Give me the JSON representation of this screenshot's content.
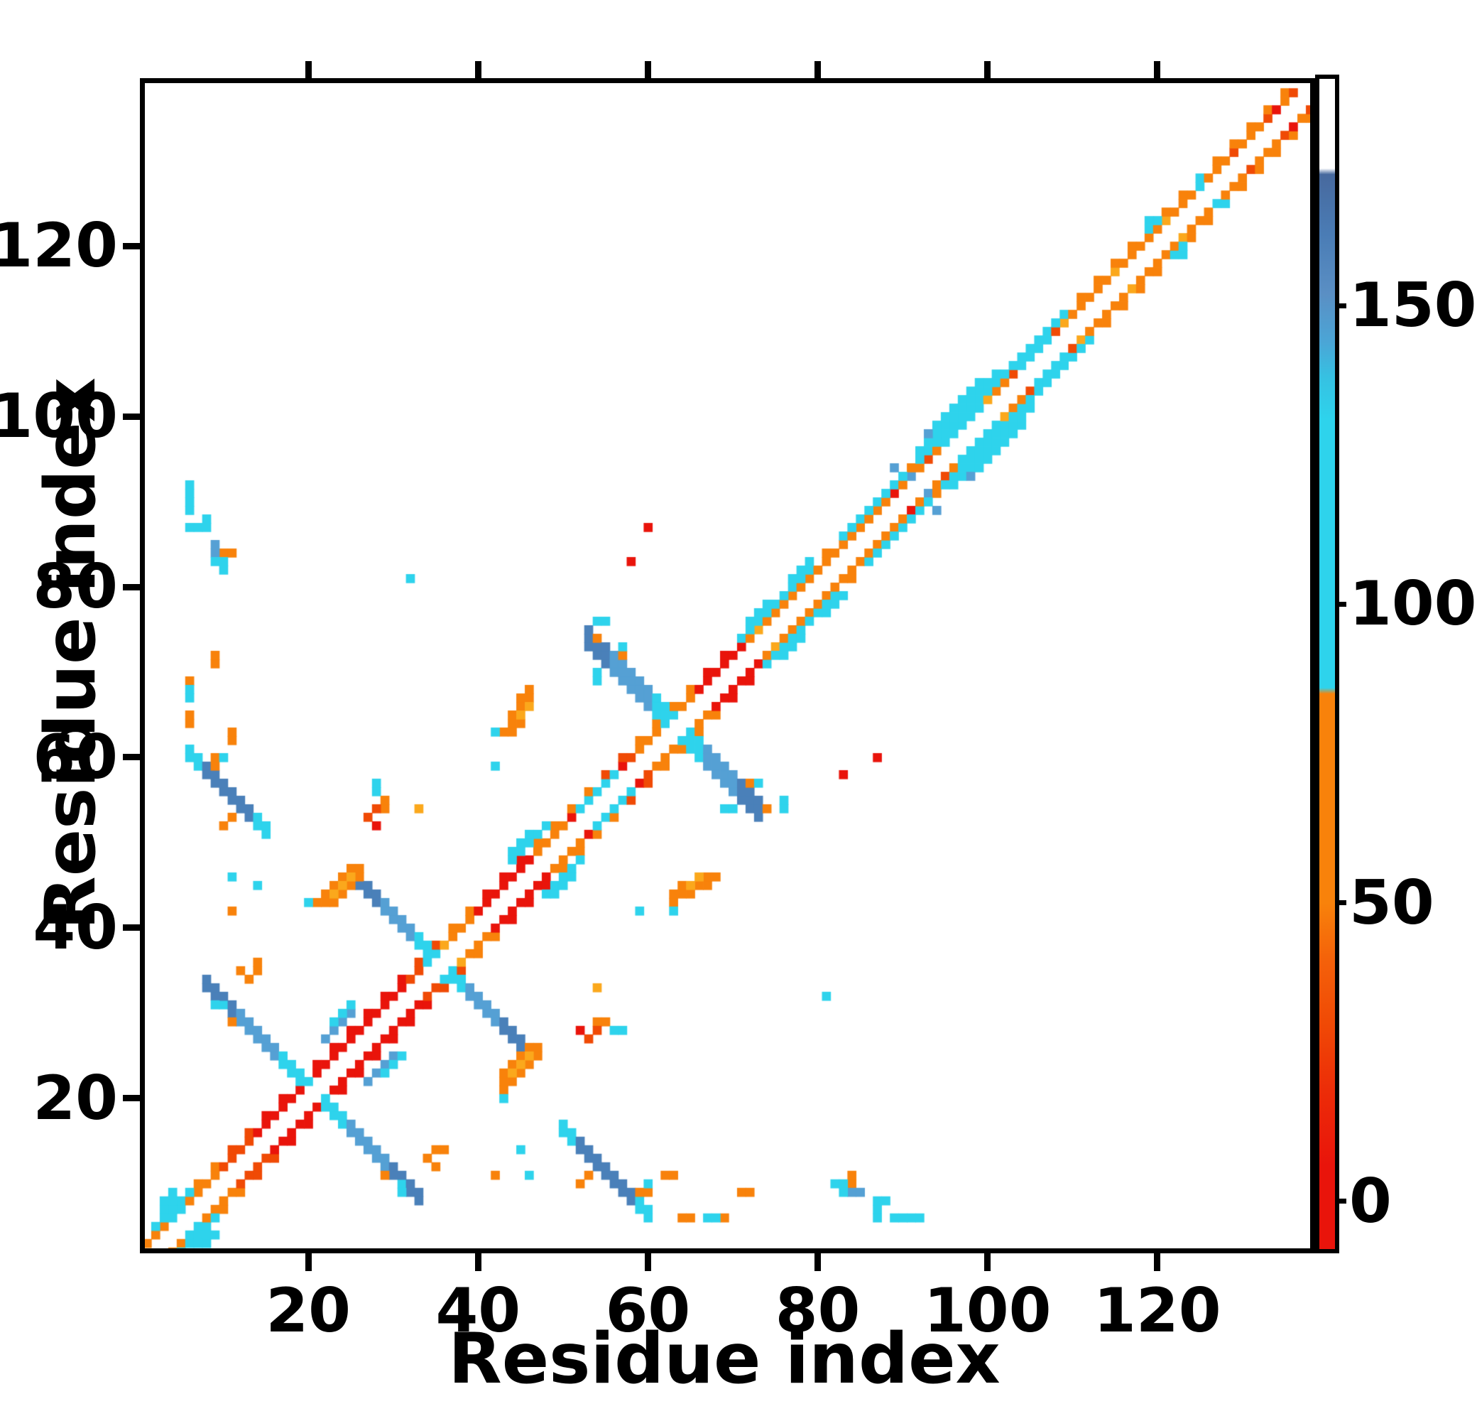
{
  "chart_data": {
    "type": "heatmap",
    "title": "",
    "xlabel": "Residue index",
    "ylabel": "Residue index",
    "x_ticks": [
      20,
      40,
      60,
      80,
      100,
      120
    ],
    "y_ticks": [
      20,
      40,
      60,
      80,
      100,
      120
    ],
    "x_range": [
      0.75,
      138.0
    ],
    "y_range": [
      2.4,
      139.1
    ],
    "n_residues": 138,
    "grid": false,
    "palette": {
      "red": "#e9140b",
      "redorange": "#f04a05",
      "orange": "#f8820b",
      "amber": "#fba81c",
      "cyan": "#2ed3ec",
      "mblue": "#55a0d4",
      "sblue": "#4a80b9",
      "background": "#ffffff"
    },
    "diag_segments": [
      [
        2,
        9,
        "orange"
      ],
      [
        10,
        13,
        "redorange"
      ],
      [
        14,
        19,
        "red"
      ],
      [
        21,
        31,
        "red"
      ],
      [
        32,
        35,
        "redorange"
      ],
      [
        36,
        39,
        "orange"
      ],
      [
        40,
        46,
        "red"
      ],
      [
        47,
        53,
        "orange"
      ],
      [
        54,
        58,
        "redorange"
      ],
      [
        59,
        65,
        "orange"
      ],
      [
        66,
        71,
        "red"
      ],
      [
        72,
        82,
        "orange"
      ],
      [
        83,
        91,
        "orange"
      ],
      [
        92,
        110,
        "orange"
      ],
      [
        111,
        127,
        "orange"
      ],
      [
        128,
        138,
        "orange"
      ]
    ],
    "diag_flanks": [
      [
        2,
        6,
        3,
        "cyan"
      ],
      [
        22,
        25,
        5,
        "mblue"
      ],
      [
        23,
        25,
        6,
        "cyan"
      ],
      [
        34,
        35,
        2,
        "cyan"
      ],
      [
        44,
        48,
        4,
        "cyan"
      ],
      [
        44,
        46,
        5,
        "cyan"
      ],
      [
        52,
        56,
        2,
        "cyan"
      ],
      [
        71,
        76,
        3,
        "cyan"
      ],
      [
        72,
        74,
        4,
        "cyan"
      ],
      [
        77,
        79,
        3,
        "cyan"
      ],
      [
        77,
        79,
        4,
        "cyan"
      ],
      [
        83,
        90,
        3,
        "cyan"
      ],
      [
        92,
        109,
        3,
        "cyan"
      ],
      [
        92,
        101,
        4,
        "cyan"
      ],
      [
        93,
        99,
        5,
        "cyan"
      ],
      [
        95,
        99,
        2,
        "cyan"
      ],
      [
        93,
        93,
        5,
        "mblue"
      ],
      [
        104,
        108,
        2,
        "cyan"
      ],
      [
        119,
        120,
        3,
        "cyan"
      ],
      [
        125,
        125,
        2,
        "cyan"
      ],
      [
        125,
        125,
        3,
        "cyan"
      ]
    ],
    "anti_runs": [
      {
        "sum": 41,
        "from": 8,
        "to": 33,
        "center": 20.5,
        "width": 2,
        "zones": [
          [
            3.5,
            "cyan"
          ],
          [
            8.5,
            "mblue"
          ],
          [
            99,
            "sblue"
          ]
        ]
      },
      {
        "sum": 71,
        "from": 26,
        "to": 45,
        "center": 35.5,
        "width": 2,
        "zones": [
          [
            3,
            "cyan"
          ],
          [
            6.5,
            "mblue"
          ],
          [
            99,
            "sblue"
          ]
        ]
      },
      {
        "sum": 126,
        "from": 53,
        "to": 73,
        "center": 63.2,
        "width": 3,
        "zones": [
          [
            3,
            "cyan"
          ],
          [
            7.5,
            "mblue"
          ],
          [
            99,
            "sblue"
          ]
        ]
      },
      {
        "sum": 66,
        "from": 6,
        "to": 15,
        "center": 10.5,
        "width": 2,
        "zones": [
          [
            2.6,
            "sblue"
          ],
          [
            99,
            "cyan"
          ]
        ]
      },
      {
        "sum": 66,
        "from": 50,
        "to": 60,
        "center": 55,
        "width": 2,
        "zones": [
          [
            3.5,
            "sblue"
          ],
          [
            99,
            "cyan"
          ]
        ]
      }
    ],
    "points": {
      "orange": [
        [
          1,
          3
        ],
        [
          10,
          84
        ],
        [
          9,
          71
        ],
        [
          9,
          72
        ],
        [
          6,
          69
        ],
        [
          6,
          65
        ],
        [
          6,
          64
        ],
        [
          12,
          35
        ],
        [
          13,
          34
        ],
        [
          14,
          35
        ],
        [
          14,
          36
        ],
        [
          11,
          29
        ],
        [
          54,
          74
        ],
        [
          72,
          57
        ],
        [
          59,
          9
        ],
        [
          60,
          9
        ],
        [
          62,
          11
        ],
        [
          63,
          11
        ],
        [
          84,
          11
        ],
        [
          42,
          11
        ],
        [
          52,
          10
        ],
        [
          53,
          11
        ],
        [
          29,
          54
        ],
        [
          29,
          55
        ],
        [
          21,
          43
        ],
        [
          22,
          43
        ],
        [
          23,
          43
        ],
        [
          22,
          44
        ],
        [
          24,
          44
        ],
        [
          23,
          45
        ],
        [
          25,
          45
        ],
        [
          24,
          46
        ],
        [
          26,
          46
        ],
        [
          25,
          47
        ],
        [
          26,
          47
        ],
        [
          43,
          63
        ],
        [
          44,
          63
        ],
        [
          44,
          64
        ],
        [
          45,
          64
        ],
        [
          44,
          65
        ],
        [
          45,
          66
        ],
        [
          45,
          67
        ],
        [
          46,
          67
        ],
        [
          46,
          68
        ]
      ],
      "amber": [
        [
          33,
          54
        ],
        [
          23,
          44
        ],
        [
          24,
          45
        ],
        [
          25,
          46
        ],
        [
          45,
          65
        ],
        [
          46,
          66
        ],
        [
          36,
          38
        ],
        [
          73,
          75
        ],
        [
          93,
          95
        ],
        [
          100,
          102
        ],
        [
          109,
          111
        ],
        [
          115,
          117
        ],
        [
          121,
          123
        ]
      ],
      "redorange": [
        [
          27,
          53
        ],
        [
          28,
          54
        ],
        [
          95,
          93
        ],
        [
          103,
          105
        ],
        [
          108,
          110
        ],
        [
          129,
          131
        ],
        [
          133,
          135
        ],
        [
          136,
          138
        ]
      ],
      "red": [
        [
          58,
          83
        ],
        [
          60,
          87
        ],
        [
          28,
          52
        ],
        [
          45,
          47
        ],
        [
          57,
          59
        ],
        [
          51,
          53
        ],
        [
          89,
          91
        ],
        [
          134,
          136
        ]
      ],
      "cyan": [
        [
          3,
          7
        ],
        [
          3,
          8
        ],
        [
          4,
          8
        ],
        [
          4,
          9
        ],
        [
          4,
          6
        ],
        [
          5,
          7
        ],
        [
          6,
          89
        ],
        [
          6,
          90
        ],
        [
          6,
          87
        ],
        [
          7,
          87
        ],
        [
          8,
          87
        ],
        [
          8,
          88
        ],
        [
          9,
          84
        ],
        [
          9,
          83
        ],
        [
          10,
          82
        ],
        [
          6,
          68
        ],
        [
          6,
          67
        ],
        [
          14,
          45
        ],
        [
          9,
          31
        ],
        [
          10,
          31
        ],
        [
          32,
          81
        ],
        [
          42,
          59
        ],
        [
          20,
          43
        ],
        [
          63,
          42
        ],
        [
          28,
          56
        ],
        [
          28,
          57
        ],
        [
          73,
          57
        ],
        [
          69,
          54
        ],
        [
          70,
          54
        ],
        [
          54,
          76
        ],
        [
          55,
          76
        ],
        [
          60,
          10
        ],
        [
          83,
          10
        ],
        [
          83,
          9
        ],
        [
          87,
          8
        ],
        [
          88,
          8
        ],
        [
          91,
          6
        ],
        [
          92,
          6
        ],
        [
          46,
          11
        ],
        [
          119,
          123
        ]
      ],
      "mblue": [
        [
          9,
          85
        ],
        [
          84,
          9
        ],
        [
          91,
          93
        ],
        [
          89,
          94
        ]
      ]
    },
    "mirror_symmetric": true,
    "colorbar": {
      "ticks": [
        0,
        50,
        100,
        150
      ],
      "value_range": [
        -8,
        188
      ],
      "gradient_stops": [
        [
          188,
          "#ffffff"
        ],
        [
          173,
          "#ffffff"
        ],
        [
          172,
          "#47699e"
        ],
        [
          162,
          "#4a7cb5"
        ],
        [
          152,
          "#5a8fc4"
        ],
        [
          144,
          "#4ba5d6"
        ],
        [
          138,
          "#36c1e2"
        ],
        [
          131,
          "#2ed3ec"
        ],
        [
          86,
          "#2ed3ec"
        ],
        [
          85,
          "#f8820b"
        ],
        [
          50,
          "#f8820b"
        ],
        [
          40,
          "#f4600a"
        ],
        [
          30,
          "#f04a05"
        ],
        [
          18,
          "#ec2b08"
        ],
        [
          6,
          "#e9140b"
        ],
        [
          -8,
          "#e9140b"
        ]
      ]
    }
  }
}
